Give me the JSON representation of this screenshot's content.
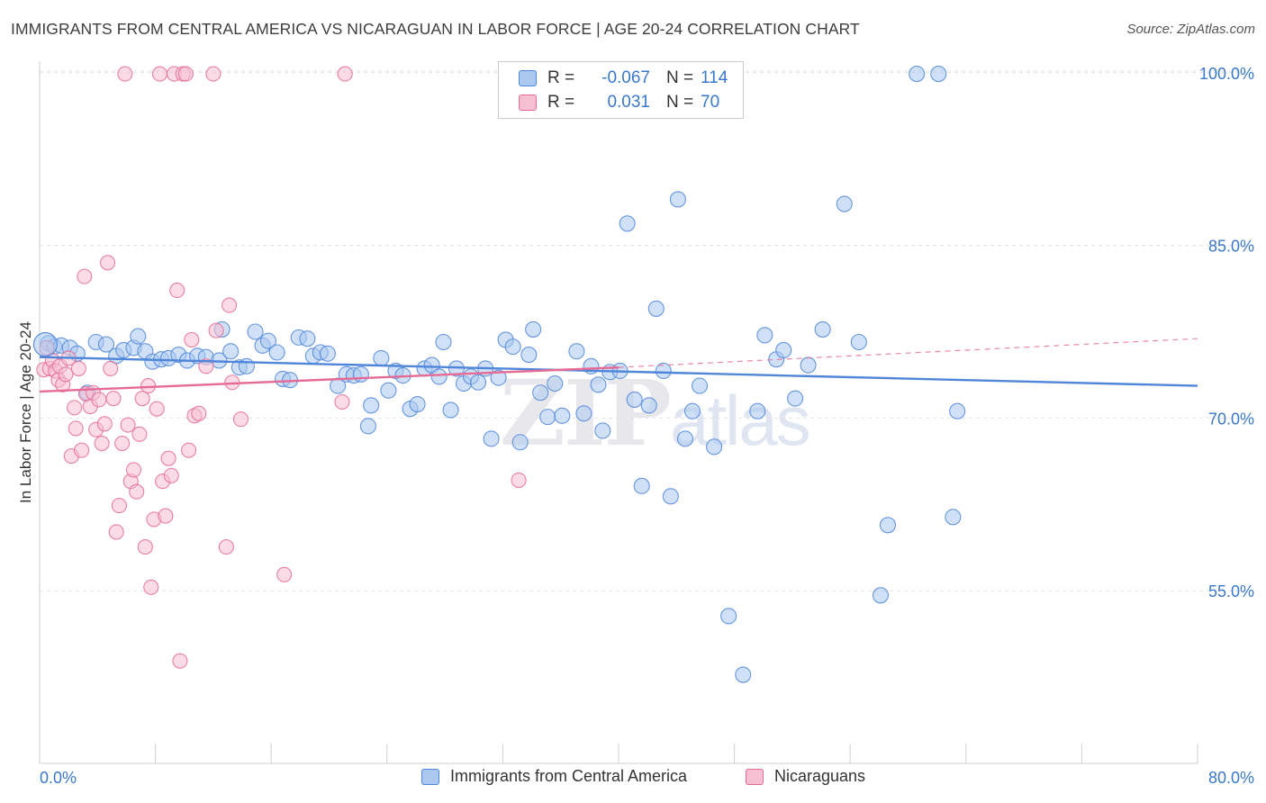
{
  "title": "IMMIGRANTS FROM CENTRAL AMERICA VS NICARAGUAN IN LABOR FORCE | AGE 20-24 CORRELATION CHART",
  "source": "Source: ZipAtlas.com",
  "watermark": {
    "zip": "ZIP",
    "atlas": "atlas"
  },
  "legend": {
    "rows": [
      {
        "r_label": "R =",
        "r_value": "-0.067",
        "n_label": "N =",
        "n_value": "114",
        "color": "#4f86d9",
        "fill": "#aac8f0"
      },
      {
        "r_label": "R =",
        "r_value": "0.031",
        "n_label": "N =",
        "n_value": "70",
        "color": "#e56b95",
        "fill": "#f7bfd2"
      }
    ]
  },
  "bottom_legend": [
    "Immigrants from Central America",
    "Nicaraguans"
  ],
  "chart_data": {
    "type": "scatter",
    "title": "IMMIGRANTS FROM CENTRAL AMERICA VS NICARAGUAN IN LABOR FORCE | AGE 20-24 CORRELATION CHART",
    "xlabel": "",
    "ylabel": "In Labor Force | Age 20-24",
    "xlim": [
      0,
      80
    ],
    "ylim": [
      40,
      101
    ],
    "x_tick_labels": [
      "0.0%",
      "80.0%"
    ],
    "y_ticks": [
      55,
      70,
      85,
      100
    ],
    "y_tick_labels": [
      "55.0%",
      "70.0%",
      "85.0%",
      "100.0%"
    ],
    "grid": true,
    "legend_position": "top-center",
    "series": [
      {
        "name": "Immigrants from Central America",
        "color": "#4f86d9",
        "fill": "#aac8f0",
        "trend": {
          "x": [
            0,
            80
          ],
          "y": [
            75.3,
            72.8
          ]
        },
        "points": [
          [
            0.6,
            76.5
          ],
          [
            1.0,
            76.2
          ],
          [
            1.5,
            76.3
          ],
          [
            2.1,
            76.1
          ],
          [
            2.6,
            75.6
          ],
          [
            3.3,
            72.2
          ],
          [
            3.9,
            76.6
          ],
          [
            4.6,
            76.4
          ],
          [
            5.3,
            75.4
          ],
          [
            5.8,
            75.9
          ],
          [
            6.5,
            76.1
          ],
          [
            6.8,
            77.1
          ],
          [
            7.3,
            75.8
          ],
          [
            7.8,
            74.9
          ],
          [
            8.4,
            75.1
          ],
          [
            8.9,
            75.2
          ],
          [
            9.6,
            75.5
          ],
          [
            10.2,
            75.0
          ],
          [
            10.9,
            75.4
          ],
          [
            11.5,
            75.3
          ],
          [
            12.4,
            75.0
          ],
          [
            12.6,
            77.7
          ],
          [
            13.2,
            75.8
          ],
          [
            13.8,
            74.4
          ],
          [
            14.3,
            74.5
          ],
          [
            14.9,
            77.5
          ],
          [
            15.4,
            76.3
          ],
          [
            15.8,
            76.7
          ],
          [
            16.4,
            75.7
          ],
          [
            16.8,
            73.4
          ],
          [
            17.3,
            73.3
          ],
          [
            17.9,
            77.0
          ],
          [
            18.5,
            76.9
          ],
          [
            18.9,
            75.4
          ],
          [
            19.4,
            75.7
          ],
          [
            19.9,
            75.6
          ],
          [
            20.6,
            72.8
          ],
          [
            21.2,
            73.8
          ],
          [
            21.7,
            73.7
          ],
          [
            22.2,
            73.8
          ],
          [
            22.7,
            69.3
          ],
          [
            22.9,
            71.1
          ],
          [
            23.6,
            75.2
          ],
          [
            24.1,
            72.4
          ],
          [
            24.6,
            74.1
          ],
          [
            25.1,
            73.7
          ],
          [
            25.6,
            70.8
          ],
          [
            26.1,
            71.2
          ],
          [
            26.6,
            74.3
          ],
          [
            27.1,
            74.6
          ],
          [
            27.6,
            73.6
          ],
          [
            27.9,
            76.6
          ],
          [
            28.4,
            70.7
          ],
          [
            28.8,
            74.3
          ],
          [
            29.3,
            73.0
          ],
          [
            29.8,
            73.6
          ],
          [
            30.3,
            73.1
          ],
          [
            30.8,
            74.3
          ],
          [
            31.2,
            68.2
          ],
          [
            31.7,
            73.5
          ],
          [
            32.2,
            76.8
          ],
          [
            32.7,
            76.2
          ],
          [
            33.2,
            67.9
          ],
          [
            33.8,
            75.5
          ],
          [
            34.1,
            77.7
          ],
          [
            34.6,
            72.2
          ],
          [
            35.1,
            70.1
          ],
          [
            35.6,
            73.0
          ],
          [
            36.1,
            70.2
          ],
          [
            37.1,
            75.8
          ],
          [
            37.6,
            70.4
          ],
          [
            38.1,
            74.5
          ],
          [
            38.6,
            72.9
          ],
          [
            38.9,
            68.9
          ],
          [
            39.4,
            74.0
          ],
          [
            40.1,
            74.1
          ],
          [
            40.6,
            86.9
          ],
          [
            41.1,
            71.6
          ],
          [
            41.6,
            64.1
          ],
          [
            42.1,
            71.1
          ],
          [
            42.6,
            79.5
          ],
          [
            43.1,
            74.1
          ],
          [
            43.6,
            63.2
          ],
          [
            44.1,
            89.0
          ],
          [
            44.6,
            68.2
          ],
          [
            45.1,
            70.6
          ],
          [
            45.6,
            72.8
          ],
          [
            46.1,
            99.8
          ],
          [
            46.6,
            67.5
          ],
          [
            47.6,
            52.8
          ],
          [
            48.6,
            47.7
          ],
          [
            49.6,
            70.6
          ],
          [
            50.1,
            77.2
          ],
          [
            50.9,
            75.1
          ],
          [
            51.4,
            75.9
          ],
          [
            52.2,
            71.7
          ],
          [
            53.1,
            74.6
          ],
          [
            54.1,
            77.7
          ],
          [
            55.6,
            88.6
          ],
          [
            56.6,
            76.6
          ],
          [
            58.1,
            54.6
          ],
          [
            58.6,
            60.7
          ],
          [
            60.6,
            99.9
          ],
          [
            62.1,
            99.9
          ],
          [
            63.1,
            61.4
          ],
          [
            63.4,
            70.6
          ]
        ]
      },
      {
        "name": "Nicaraguans",
        "color": "#e56b95",
        "fill": "#f7bfd2",
        "trend": {
          "x": [
            0,
            40
          ],
          "y": [
            72.3,
            74.4
          ]
        },
        "trend_dashed": {
          "x": [
            40,
            80
          ],
          "y": [
            74.4,
            76.9
          ]
        },
        "points": [
          [
            0.3,
            74.2
          ],
          [
            0.5,
            76.1
          ],
          [
            0.7,
            74.3
          ],
          [
            0.9,
            75.0
          ],
          [
            1.1,
            74.1
          ],
          [
            1.3,
            73.3
          ],
          [
            1.4,
            74.5
          ],
          [
            1.6,
            72.9
          ],
          [
            1.8,
            73.8
          ],
          [
            2.0,
            75.2
          ],
          [
            2.2,
            66.7
          ],
          [
            2.4,
            70.9
          ],
          [
            2.5,
            69.1
          ],
          [
            2.7,
            74.3
          ],
          [
            2.9,
            67.2
          ],
          [
            3.1,
            82.3
          ],
          [
            3.2,
            72.1
          ],
          [
            3.5,
            71.0
          ],
          [
            3.7,
            72.2
          ],
          [
            3.9,
            69.0
          ],
          [
            4.1,
            71.6
          ],
          [
            4.3,
            67.8
          ],
          [
            4.5,
            69.5
          ],
          [
            4.7,
            83.5
          ],
          [
            4.9,
            74.3
          ],
          [
            5.1,
            71.7
          ],
          [
            5.3,
            60.1
          ],
          [
            5.5,
            62.4
          ],
          [
            5.7,
            67.8
          ],
          [
            5.9,
            99.9
          ],
          [
            6.1,
            69.4
          ],
          [
            6.3,
            64.5
          ],
          [
            6.5,
            65.5
          ],
          [
            6.7,
            63.6
          ],
          [
            6.9,
            68.6
          ],
          [
            7.1,
            71.7
          ],
          [
            7.3,
            58.8
          ],
          [
            7.5,
            72.8
          ],
          [
            7.7,
            55.3
          ],
          [
            7.9,
            61.2
          ],
          [
            8.1,
            70.8
          ],
          [
            8.3,
            99.9
          ],
          [
            8.5,
            64.5
          ],
          [
            8.7,
            61.5
          ],
          [
            8.9,
            66.5
          ],
          [
            9.1,
            65.0
          ],
          [
            9.3,
            99.9
          ],
          [
            9.5,
            81.1
          ],
          [
            9.7,
            48.9
          ],
          [
            9.9,
            99.9
          ],
          [
            10.1,
            99.9
          ],
          [
            10.3,
            67.2
          ],
          [
            10.5,
            76.8
          ],
          [
            10.7,
            70.2
          ],
          [
            11.0,
            70.4
          ],
          [
            11.5,
            74.5
          ],
          [
            12.0,
            99.9
          ],
          [
            12.2,
            77.6
          ],
          [
            12.9,
            58.8
          ],
          [
            13.1,
            79.8
          ],
          [
            13.3,
            73.1
          ],
          [
            13.9,
            69.9
          ],
          [
            16.9,
            56.4
          ],
          [
            20.9,
            71.4
          ],
          [
            21.1,
            99.9
          ],
          [
            33.1,
            64.6
          ]
        ]
      }
    ]
  }
}
